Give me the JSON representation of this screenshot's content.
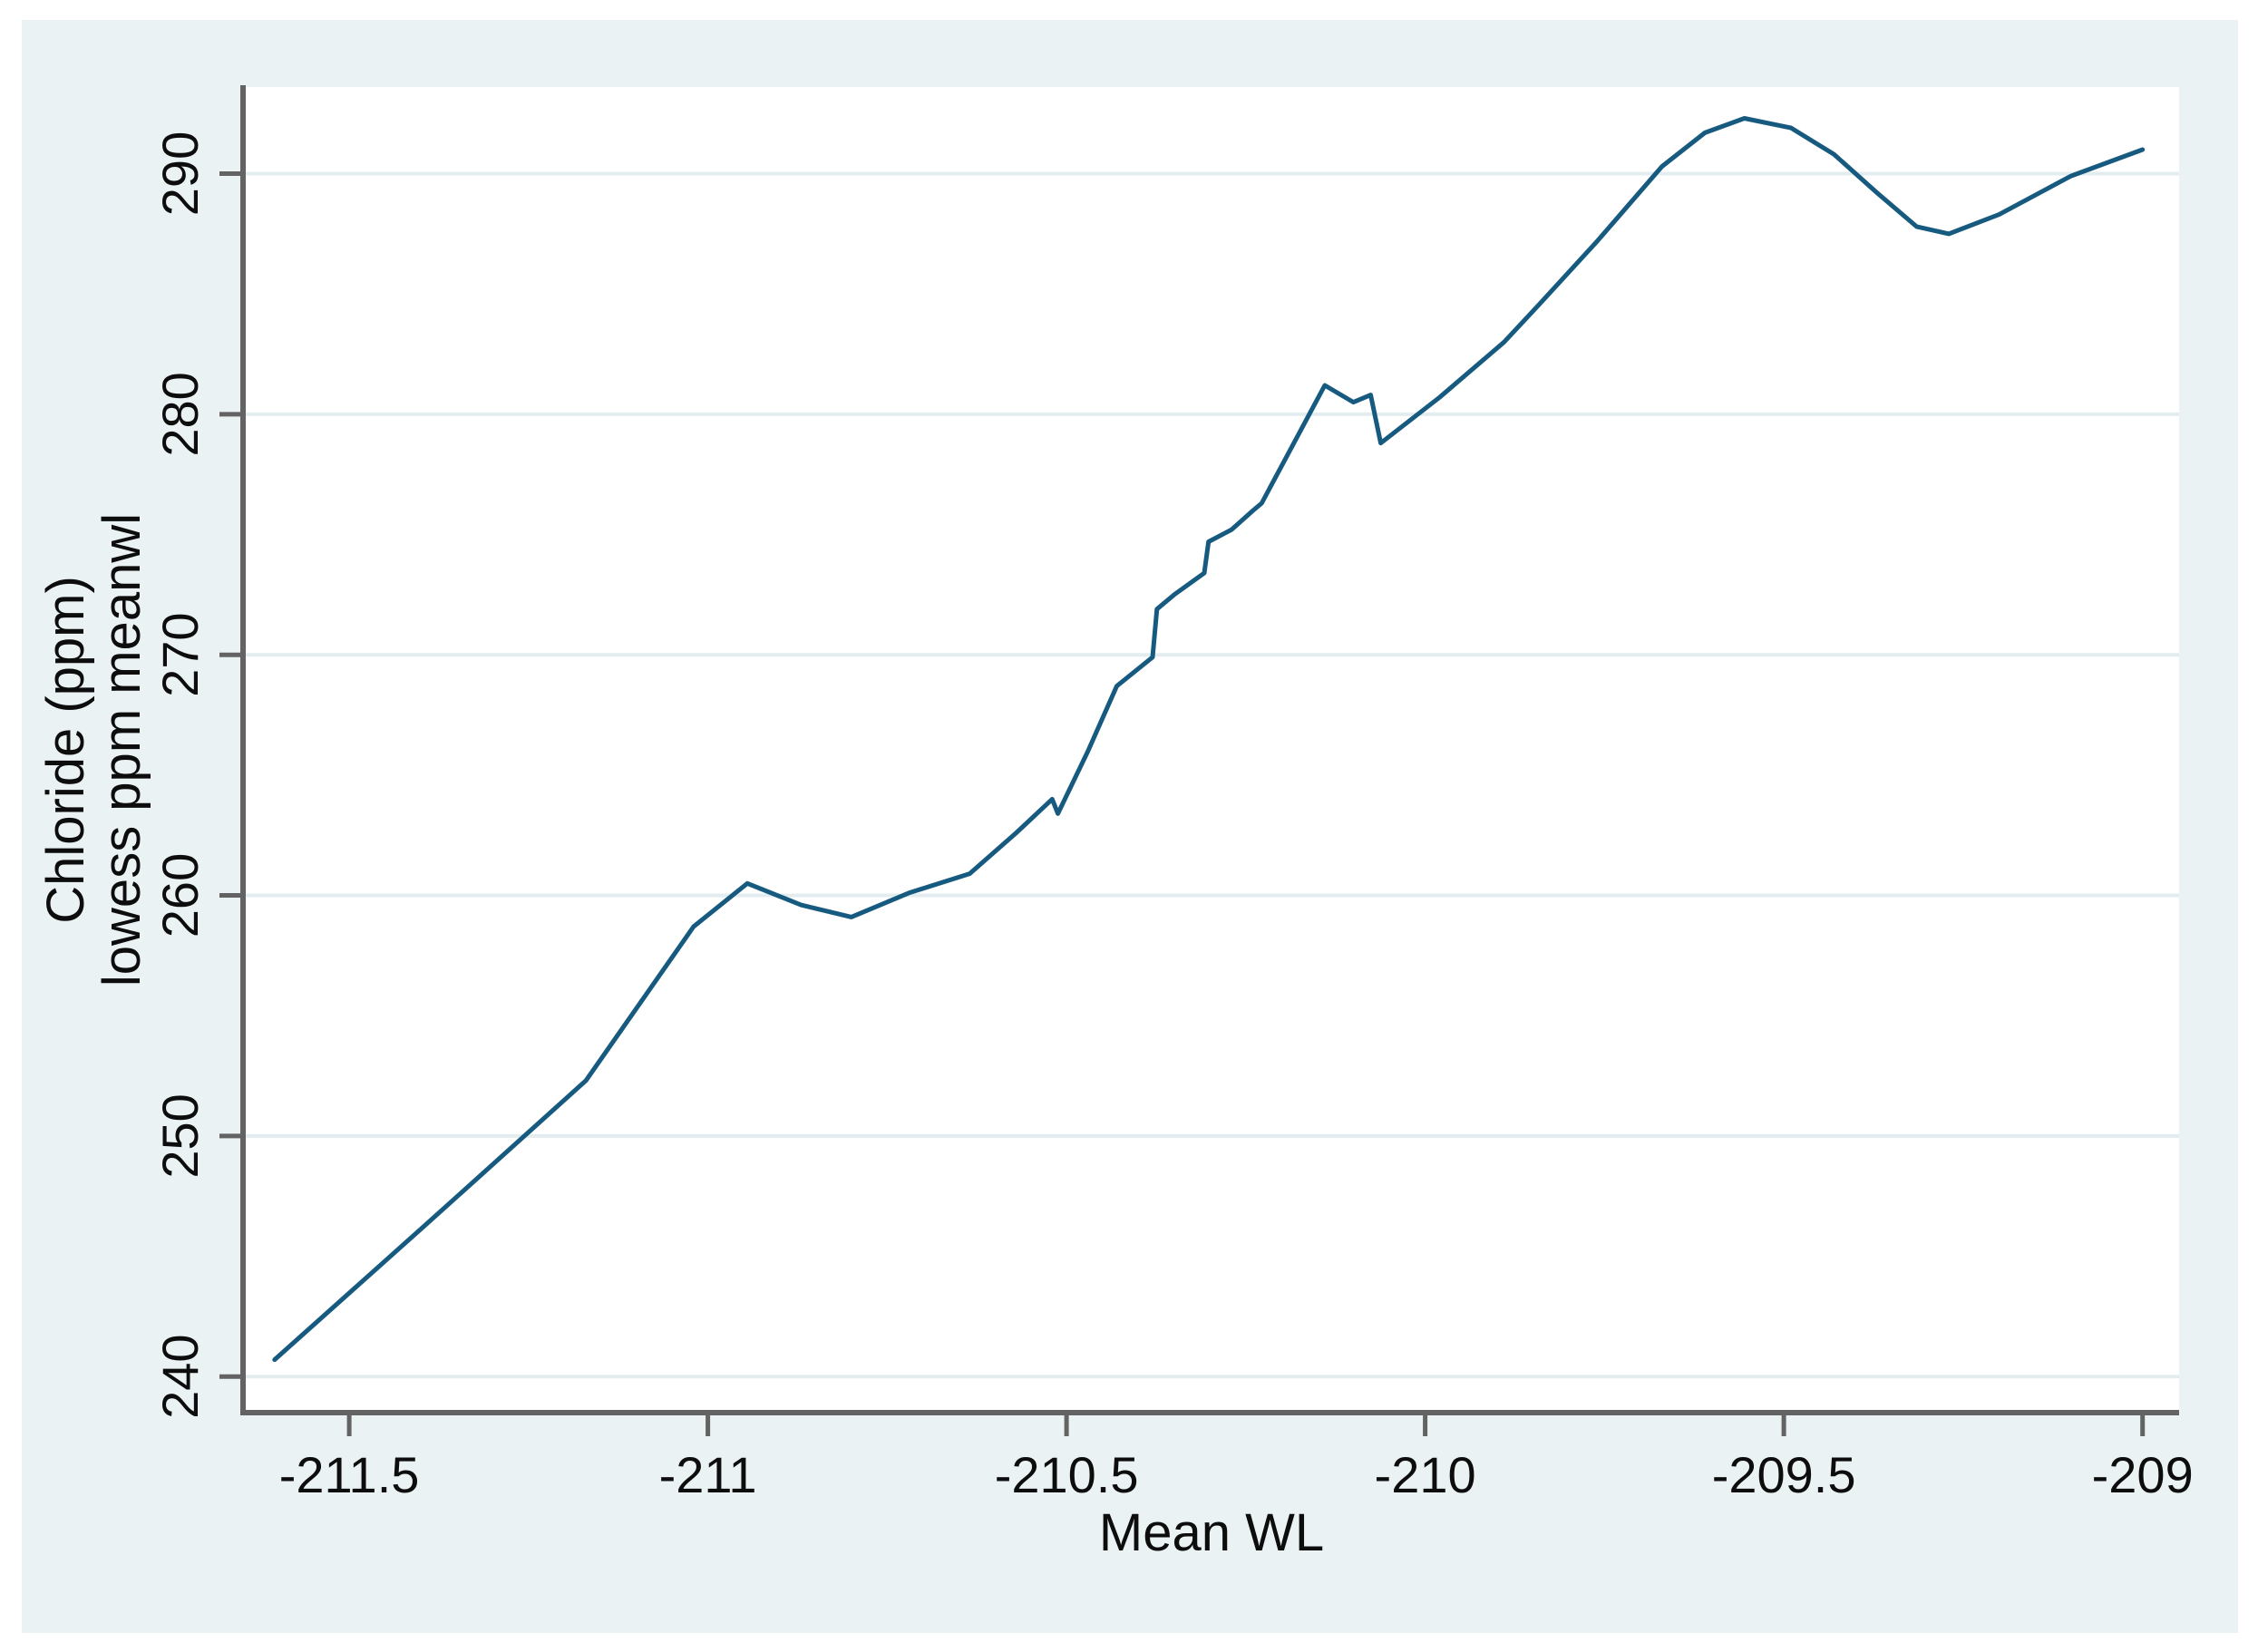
{
  "chart_data": {
    "type": "line",
    "title": "",
    "xlabel": "Mean WL",
    "ylabel": "Chloride (ppm)",
    "ylabel_line2": "lowess ppm meanwl",
    "xlim": [
      -211.648,
      -208.949
    ],
    "ylim": [
      238.5,
      293.6
    ],
    "grid": "horizontal-only",
    "legend": "none",
    "xticks": {
      "values": [
        -211.5,
        -211,
        -210.5,
        -210,
        -209.5,
        -209
      ],
      "labels": [
        "-211.5",
        "-211",
        "-210.5",
        "-210",
        "-209.5",
        "-209"
      ]
    },
    "yticks": {
      "values": [
        240,
        250,
        260,
        270,
        280,
        290
      ],
      "labels": [
        "240",
        "250",
        "260",
        "270",
        "280",
        "290"
      ]
    },
    "series": [
      {
        "name": "lowess ppm meanwl",
        "color": "#175a80",
        "points": [
          [
            -211.604,
            240.7
          ],
          [
            -211.39,
            246.4
          ],
          [
            -211.17,
            252.3
          ],
          [
            -211.02,
            258.7
          ],
          [
            -210.945,
            260.5
          ],
          [
            -210.87,
            259.6
          ],
          [
            -210.8,
            259.1
          ],
          [
            -210.72,
            260.1
          ],
          [
            -210.635,
            260.9
          ],
          [
            -210.57,
            262.6
          ],
          [
            -210.52,
            264.0
          ],
          [
            -210.512,
            263.4
          ],
          [
            -210.47,
            266.0
          ],
          [
            -210.43,
            268.7
          ],
          [
            -210.38,
            269.9
          ],
          [
            -210.374,
            271.9
          ],
          [
            -210.35,
            272.5
          ],
          [
            -210.308,
            273.4
          ],
          [
            -210.302,
            274.7
          ],
          [
            -210.27,
            275.2
          ],
          [
            -210.24,
            276.0
          ],
          [
            -210.228,
            276.3
          ],
          [
            -210.14,
            281.2
          ],
          [
            -210.1,
            280.5
          ],
          [
            -210.076,
            280.8
          ],
          [
            -210.062,
            278.8
          ],
          [
            -209.98,
            280.7
          ],
          [
            -209.89,
            283.0
          ],
          [
            -209.84,
            284.6
          ],
          [
            -209.76,
            287.2
          ],
          [
            -209.67,
            290.3
          ],
          [
            -209.61,
            291.7
          ],
          [
            -209.555,
            292.3
          ],
          [
            -209.49,
            291.9
          ],
          [
            -209.43,
            290.8
          ],
          [
            -209.37,
            289.2
          ],
          [
            -209.315,
            287.8
          ],
          [
            -209.27,
            287.5
          ],
          [
            -209.2,
            288.3
          ],
          [
            -209.1,
            289.9
          ],
          [
            -209.0,
            291.0
          ]
        ]
      }
    ]
  },
  "colors": {
    "page_bg": "#ffffff",
    "canvas_bg": "#eaf2f3",
    "plot_bg": "#ffffff",
    "gridline": "#e3edf0",
    "axis": "#636363",
    "text": "#0d0d0d",
    "line": "#175a80"
  }
}
